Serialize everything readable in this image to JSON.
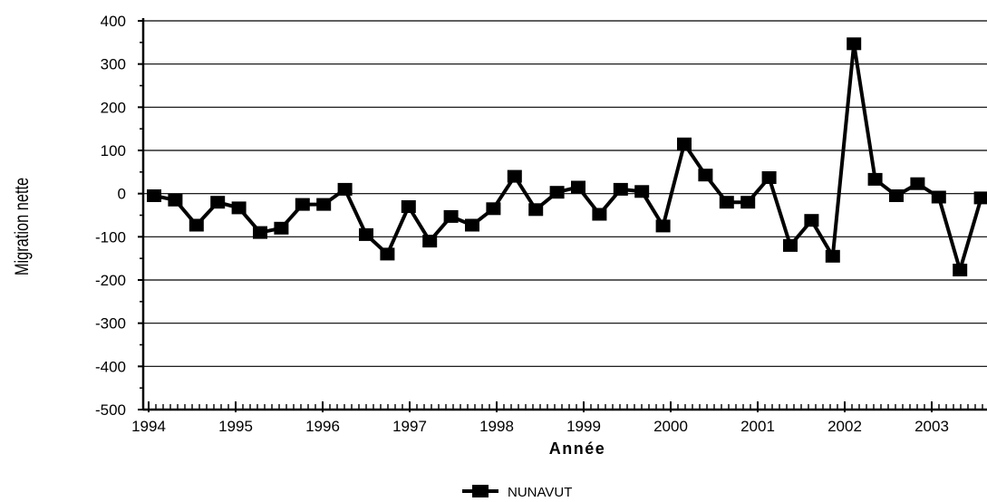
{
  "chart_data": {
    "type": "line",
    "title": "",
    "xlabel": "Année",
    "ylabel": "Migration nette",
    "ylim": [
      -500,
      400
    ],
    "yticks": [
      "400",
      "300",
      "200",
      "100",
      "0",
      "-100",
      "-200",
      "-300",
      "-400",
      "-500"
    ],
    "xtick_labels": [
      "1994",
      "1995",
      "1996",
      "1997",
      "1998",
      "1999",
      "2000",
      "2001",
      "2002",
      "2003"
    ],
    "grid": "horizontal",
    "legend_position": "bottom-center",
    "line_color": "#000000",
    "series": [
      {
        "name": "NUNAVUT",
        "values": [
          -5,
          -15,
          -73,
          -20,
          -33,
          -90,
          -80,
          -25,
          -25,
          10,
          -95,
          -140,
          -30,
          -110,
          -53,
          -73,
          -35,
          40,
          -37,
          3,
          15,
          -48,
          10,
          5,
          -75,
          115,
          43,
          -20,
          -20,
          37,
          -120,
          -62,
          -145,
          347,
          33,
          -5,
          23,
          -8,
          -177,
          -10
        ]
      }
    ]
  }
}
